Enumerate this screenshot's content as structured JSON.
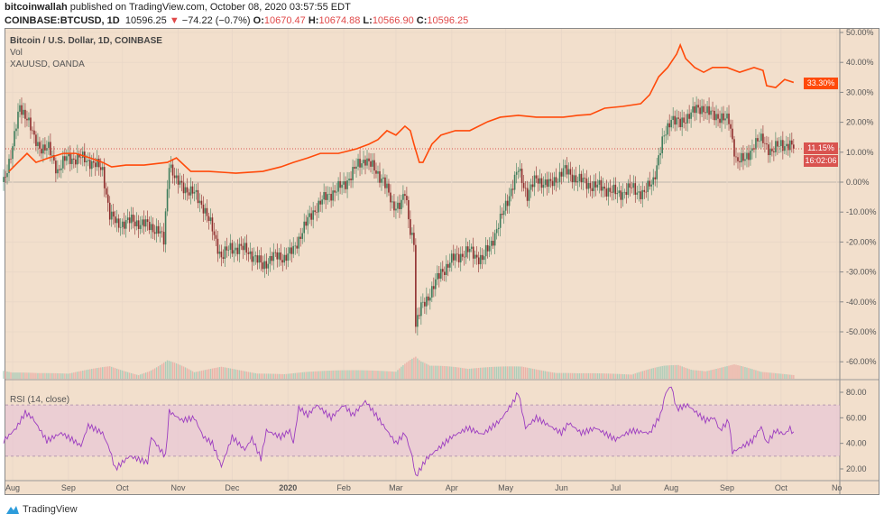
{
  "header": {
    "author": "bitcoinwallah",
    "published": "published on TradingView.com, October 08, 2020 03:57:55 EDT",
    "symbol": "COINBASE:BTCUSD, 1D",
    "last": "10596.25",
    "change": "−74.22 (−0.7%)",
    "o_label": "O:",
    "o": "10670.47",
    "h_label": "H:",
    "h": "10674.88",
    "l_label": "L:",
    "l": "10566.90",
    "c_label": "C:",
    "c": "10596.25"
  },
  "legend": {
    "main": "Bitcoin / U.S. Dollar, 1D, COINBASE",
    "vol": "Vol",
    "compare": "XAUUSD, OANDA",
    "rsi": "RSI (14, close)"
  },
  "badges": {
    "gold": "33.30%",
    "btc": "11.15%",
    "countdown": "16:02:06"
  },
  "footer": {
    "brand": "TradingView"
  },
  "colors": {
    "background": "#f2dfcc",
    "up": "#3f7d5c",
    "down": "#8e2d2d",
    "gold": "#ff4a0a",
    "rsi": "#9c3cc0",
    "rsi_band": "#e8c6d6",
    "btc_badge": "#d9534f"
  },
  "chart_data": [
    {
      "type": "candlestick",
      "title": "Bitcoin / U.S. Dollar, 1D, COINBASE",
      "y_unit": "% change",
      "ylim": [
        -65,
        52
      ],
      "y_ticks": [
        "50.00%",
        "40.00%",
        "30.00%",
        "20.00%",
        "10.00%",
        "0.00%",
        "-10.00%",
        "-20.00%",
        "-30.00%",
        "-40.00%",
        "-50.00%",
        "-60.00%"
      ],
      "x_ticks": [
        "Aug",
        "Sep",
        "Oct",
        "Nov",
        "Dec",
        "2020",
        "Feb",
        "Mar",
        "Apr",
        "May",
        "Jun",
        "Jul",
        "Aug",
        "Sep",
        "Oct",
        "No"
      ],
      "grid": true,
      "series": [
        {
          "name": "BTCUSD",
          "points": [
            [
              "2019-07-27",
              0
            ],
            [
              "2019-08-01",
              12
            ],
            [
              "2019-08-05",
              25
            ],
            [
              "2019-08-09",
              22
            ],
            [
              "2019-08-13",
              14
            ],
            [
              "2019-08-16",
              12
            ],
            [
              "2019-08-21",
              11
            ],
            [
              "2019-08-26",
              4
            ],
            [
              "2019-08-31",
              8
            ],
            [
              "2019-09-08",
              8
            ],
            [
              "2019-09-13",
              7
            ],
            [
              "2019-09-20",
              4
            ],
            [
              "2019-09-24",
              -11
            ],
            [
              "2019-09-28",
              -14
            ],
            [
              "2019-10-06",
              -13
            ],
            [
              "2019-10-13",
              -14
            ],
            [
              "2019-10-21",
              -16
            ],
            [
              "2019-10-24",
              -20
            ],
            [
              "2019-10-27",
              7
            ],
            [
              "2019-10-31",
              0
            ],
            [
              "2019-11-05",
              -2
            ],
            [
              "2019-11-10",
              -4
            ],
            [
              "2019-11-15",
              -8
            ],
            [
              "2019-11-20",
              -16
            ],
            [
              "2019-11-25",
              -25
            ],
            [
              "2019-11-30",
              -22
            ],
            [
              "2019-12-05",
              -22
            ],
            [
              "2019-12-10",
              -23
            ],
            [
              "2019-12-18",
              -28
            ],
            [
              "2019-12-23",
              -25
            ],
            [
              "2019-12-30",
              -25
            ],
            [
              "2020-01-04",
              -23
            ],
            [
              "2020-01-09",
              -16
            ],
            [
              "2020-01-17",
              -8
            ],
            [
              "2020-01-24",
              -4
            ],
            [
              "2020-02-01",
              -1
            ],
            [
              "2020-02-08",
              5
            ],
            [
              "2020-02-13",
              8
            ],
            [
              "2020-02-18",
              4
            ],
            [
              "2020-02-23",
              1
            ],
            [
              "2020-02-28",
              -8
            ],
            [
              "2020-03-04",
              -7
            ],
            [
              "2020-03-06",
              -4
            ],
            [
              "2020-03-09",
              -16
            ],
            [
              "2020-03-11",
              -19
            ],
            [
              "2020-03-12",
              -48
            ],
            [
              "2020-03-15",
              -42
            ],
            [
              "2020-03-21",
              -36
            ],
            [
              "2020-03-26",
              -30
            ],
            [
              "2020-04-03",
              -25
            ],
            [
              "2020-04-11",
              -23
            ],
            [
              "2020-04-18",
              -26
            ],
            [
              "2020-04-23",
              -20
            ],
            [
              "2020-04-28",
              -13
            ],
            [
              "2020-05-03",
              -4
            ],
            [
              "2020-05-08",
              4
            ],
            [
              "2020-05-13",
              -4
            ],
            [
              "2020-05-18",
              1
            ],
            [
              "2020-05-26",
              -1
            ],
            [
              "2020-06-02",
              4
            ],
            [
              "2020-06-10",
              1
            ],
            [
              "2020-06-17",
              -1
            ],
            [
              "2020-06-25",
              -2
            ],
            [
              "2020-07-02",
              -4
            ],
            [
              "2020-07-10",
              -2
            ],
            [
              "2020-07-17",
              -4
            ],
            [
              "2020-07-22",
              1
            ],
            [
              "2020-07-27",
              13
            ],
            [
              "2020-08-01",
              22
            ],
            [
              "2020-08-06",
              19
            ],
            [
              "2020-08-11",
              23
            ],
            [
              "2020-08-19",
              25
            ],
            [
              "2020-08-24",
              22
            ],
            [
              "2020-08-29",
              22
            ],
            [
              "2020-09-02",
              20
            ],
            [
              "2020-09-06",
              8
            ],
            [
              "2020-09-11",
              7
            ],
            [
              "2020-09-16",
              13
            ],
            [
              "2020-09-21",
              14
            ],
            [
              "2020-09-26",
              10
            ],
            [
              "2020-10-01",
              13
            ],
            [
              "2020-10-06",
              12
            ],
            [
              "2020-10-08",
              11.15
            ]
          ]
        },
        {
          "name": "XAUUSD, OANDA",
          "type": "line",
          "points": [
            [
              "2019-07-30",
              3.6
            ],
            [
              "2019-08-04",
              6.6
            ],
            [
              "2019-08-09",
              9.6
            ],
            [
              "2019-08-14",
              6.6
            ],
            [
              "2019-08-21",
              8.1
            ],
            [
              "2019-08-29",
              9.6
            ],
            [
              "2019-09-05",
              9.6
            ],
            [
              "2019-09-13",
              8.1
            ],
            [
              "2019-09-20",
              6.6
            ],
            [
              "2019-09-25",
              5.1
            ],
            [
              "2019-10-03",
              5.7
            ],
            [
              "2019-10-13",
              5.7
            ],
            [
              "2019-10-26",
              6.6
            ],
            [
              "2019-10-31",
              8.1
            ],
            [
              "2019-11-08",
              3.6
            ],
            [
              "2019-11-18",
              3.6
            ],
            [
              "2019-12-03",
              3.0
            ],
            [
              "2019-12-18",
              3.6
            ],
            [
              "2019-12-28",
              5.1
            ],
            [
              "2020-01-04",
              6.6
            ],
            [
              "2020-01-12",
              8.1
            ],
            [
              "2020-01-19",
              9.6
            ],
            [
              "2020-01-29",
              9.6
            ],
            [
              "2020-02-08",
              11.1
            ],
            [
              "2020-02-15",
              12.7
            ],
            [
              "2020-02-20",
              14.2
            ],
            [
              "2020-02-25",
              17.2
            ],
            [
              "2020-03-01",
              15.7
            ],
            [
              "2020-03-06",
              18.7
            ],
            [
              "2020-03-09",
              17.2
            ],
            [
              "2020-03-11",
              12.7
            ],
            [
              "2020-03-14",
              6.6
            ],
            [
              "2020-03-16",
              6.6
            ],
            [
              "2020-03-21",
              12.7
            ],
            [
              "2020-03-26",
              15.7
            ],
            [
              "2020-04-03",
              17.2
            ],
            [
              "2020-04-11",
              17.2
            ],
            [
              "2020-04-21",
              20.2
            ],
            [
              "2020-04-28",
              21.7
            ],
            [
              "2020-05-08",
              22.3
            ],
            [
              "2020-05-18",
              21.7
            ],
            [
              "2020-05-26",
              21.7
            ],
            [
              "2020-06-02",
              21.7
            ],
            [
              "2020-06-10",
              22.3
            ],
            [
              "2020-06-17",
              22.6
            ],
            [
              "2020-06-25",
              24.7
            ],
            [
              "2020-07-05",
              25.3
            ],
            [
              "2020-07-15",
              26.2
            ],
            [
              "2020-07-20",
              29.2
            ],
            [
              "2020-07-25",
              35.2
            ],
            [
              "2020-07-30",
              38.3
            ],
            [
              "2020-08-04",
              42.8
            ],
            [
              "2020-08-06",
              45.8
            ],
            [
              "2020-08-09",
              41.3
            ],
            [
              "2020-08-14",
              38.3
            ],
            [
              "2020-08-19",
              36.7
            ],
            [
              "2020-08-24",
              38.3
            ],
            [
              "2020-09-01",
              38.3
            ],
            [
              "2020-09-08",
              36.7
            ],
            [
              "2020-09-16",
              38.3
            ],
            [
              "2020-09-21",
              37.3
            ],
            [
              "2020-09-23",
              32.2
            ],
            [
              "2020-09-28",
              31.6
            ],
            [
              "2020-10-03",
              34.3
            ],
            [
              "2020-10-08",
              33.3
            ]
          ]
        }
      ],
      "volume_relative": [
        [
          "2019-08-01",
          30
        ],
        [
          "2019-08-15",
          20
        ],
        [
          "2019-09-01",
          15
        ],
        [
          "2019-09-24",
          40
        ],
        [
          "2019-10-10",
          15
        ],
        [
          "2019-10-26",
          70
        ],
        [
          "2019-11-10",
          20
        ],
        [
          "2019-11-25",
          35
        ],
        [
          "2019-12-15",
          18
        ],
        [
          "2020-01-10",
          25
        ],
        [
          "2020-02-10",
          25
        ],
        [
          "2020-03-01",
          25
        ],
        [
          "2020-03-12",
          100
        ],
        [
          "2020-03-20",
          55
        ],
        [
          "2020-04-10",
          30
        ],
        [
          "2020-05-10",
          40
        ],
        [
          "2020-06-10",
          20
        ],
        [
          "2020-07-10",
          12
        ],
        [
          "2020-07-28",
          45
        ],
        [
          "2020-08-05",
          55
        ],
        [
          "2020-08-20",
          30
        ],
        [
          "2020-09-05",
          45
        ],
        [
          "2020-09-20",
          20
        ],
        [
          "2020-10-08",
          12
        ]
      ]
    },
    {
      "type": "line",
      "title": "RSI (14, close)",
      "ylim": [
        10,
        88
      ],
      "y_ticks": [
        "80.00",
        "60.00",
        "40.00",
        "20.00"
      ],
      "bands": [
        30,
        70
      ],
      "points": [
        [
          "2019-07-27",
          42
        ],
        [
          "2019-08-03",
          52
        ],
        [
          "2019-08-08",
          64
        ],
        [
          "2019-08-12",
          60
        ],
        [
          "2019-08-20",
          42
        ],
        [
          "2019-08-28",
          48
        ],
        [
          "2019-09-03",
          43
        ],
        [
          "2019-09-08",
          38
        ],
        [
          "2019-09-12",
          54
        ],
        [
          "2019-09-20",
          48
        ],
        [
          "2019-09-24",
          35
        ],
        [
          "2019-09-27",
          20
        ],
        [
          "2019-10-05",
          30
        ],
        [
          "2019-10-15",
          25
        ],
        [
          "2019-10-17",
          45
        ],
        [
          "2019-10-22",
          35
        ],
        [
          "2019-10-25",
          30
        ],
        [
          "2019-10-27",
          65
        ],
        [
          "2019-11-03",
          58
        ],
        [
          "2019-11-10",
          60
        ],
        [
          "2019-11-15",
          45
        ],
        [
          "2019-11-20",
          40
        ],
        [
          "2019-11-25",
          22
        ],
        [
          "2019-12-01",
          45
        ],
        [
          "2019-12-08",
          35
        ],
        [
          "2019-12-12",
          44
        ],
        [
          "2019-12-17",
          28
        ],
        [
          "2019-12-20",
          50
        ],
        [
          "2019-12-28",
          45
        ],
        [
          "2020-01-02",
          50
        ],
        [
          "2020-01-04",
          40
        ],
        [
          "2020-01-07",
          68
        ],
        [
          "2020-01-12",
          62
        ],
        [
          "2020-01-17",
          70
        ],
        [
          "2020-01-25",
          60
        ],
        [
          "2020-02-01",
          70
        ],
        [
          "2020-02-06",
          62
        ],
        [
          "2020-02-13",
          73
        ],
        [
          "2020-02-20",
          60
        ],
        [
          "2020-03-01",
          40
        ],
        [
          "2020-03-06",
          48
        ],
        [
          "2020-03-10",
          30
        ],
        [
          "2020-03-12",
          14
        ],
        [
          "2020-03-18",
          28
        ],
        [
          "2020-04-01",
          45
        ],
        [
          "2020-04-10",
          52
        ],
        [
          "2020-04-18",
          47
        ],
        [
          "2020-04-28",
          58
        ],
        [
          "2020-05-05",
          72
        ],
        [
          "2020-05-08",
          80
        ],
        [
          "2020-05-12",
          52
        ],
        [
          "2020-05-18",
          60
        ],
        [
          "2020-06-01",
          48
        ],
        [
          "2020-06-05",
          56
        ],
        [
          "2020-06-12",
          48
        ],
        [
          "2020-06-20",
          52
        ],
        [
          "2020-07-01",
          43
        ],
        [
          "2020-07-10",
          50
        ],
        [
          "2020-07-20",
          48
        ],
        [
          "2020-07-26",
          62
        ],
        [
          "2020-07-29",
          80
        ],
        [
          "2020-08-01",
          85
        ],
        [
          "2020-08-04",
          67
        ],
        [
          "2020-08-10",
          70
        ],
        [
          "2020-08-20",
          58
        ],
        [
          "2020-08-25",
          60
        ],
        [
          "2020-08-28",
          50
        ],
        [
          "2020-09-02",
          58
        ],
        [
          "2020-09-04",
          33
        ],
        [
          "2020-09-15",
          42
        ],
        [
          "2020-09-20",
          53
        ],
        [
          "2020-09-23",
          40
        ],
        [
          "2020-09-28",
          50
        ],
        [
          "2020-10-03",
          47
        ],
        [
          "2020-10-06",
          52
        ],
        [
          "2020-10-08",
          47
        ]
      ]
    }
  ]
}
